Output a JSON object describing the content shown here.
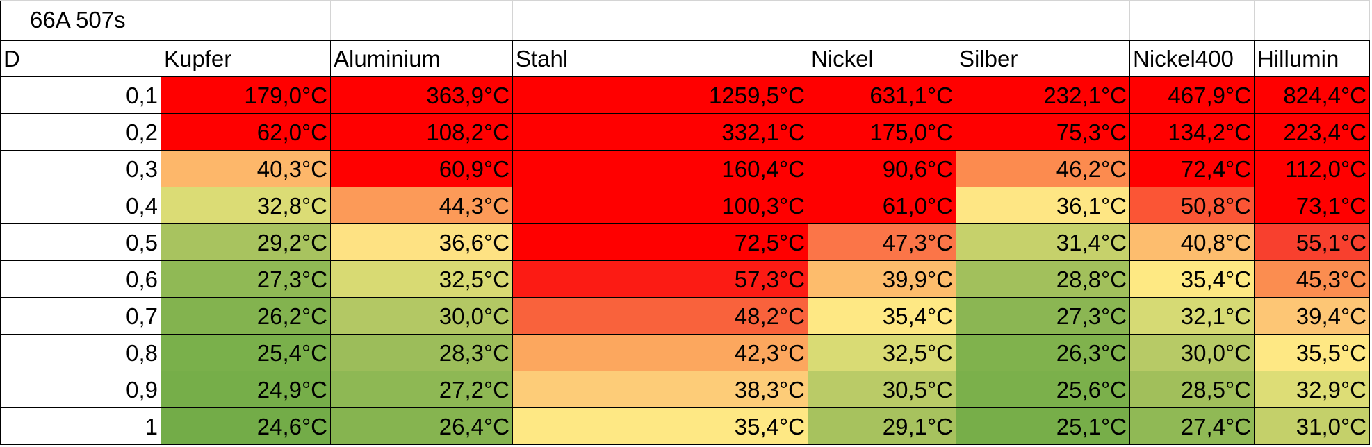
{
  "sheet": {
    "title": "66A 507s",
    "row_header": "D",
    "columns": [
      "Kupfer",
      "Aluminium",
      "Stahl",
      "Nickel",
      "Silber",
      "Nickel400",
      "Hillumin"
    ],
    "rows": [
      {
        "d": "0,1",
        "cells": [
          {
            "v": "179,0°C",
            "c": "#ff0000"
          },
          {
            "v": "363,9°C",
            "c": "#ff0000"
          },
          {
            "v": "1259,5°C",
            "c": "#ff0000"
          },
          {
            "v": "631,1°C",
            "c": "#ff0000"
          },
          {
            "v": "232,1°C",
            "c": "#ff0000"
          },
          {
            "v": "467,9°C",
            "c": "#ff0000"
          },
          {
            "v": "824,4°C",
            "c": "#ff0000"
          }
        ]
      },
      {
        "d": "0,2",
        "cells": [
          {
            "v": "62,0°C",
            "c": "#ff0000"
          },
          {
            "v": "108,2°C",
            "c": "#ff0000"
          },
          {
            "v": "332,1°C",
            "c": "#ff0000"
          },
          {
            "v": "175,0°C",
            "c": "#ff0000"
          },
          {
            "v": "75,3°C",
            "c": "#ff0000"
          },
          {
            "v": "134,2°C",
            "c": "#ff0000"
          },
          {
            "v": "223,4°C",
            "c": "#ff0000"
          }
        ]
      },
      {
        "d": "0,3",
        "cells": [
          {
            "v": "40,3°C",
            "c": "#fdb76a"
          },
          {
            "v": "60,9°C",
            "c": "#ff0000"
          },
          {
            "v": "160,4°C",
            "c": "#ff0000"
          },
          {
            "v": "90,6°C",
            "c": "#ff0000"
          },
          {
            "v": "46,2°C",
            "c": "#fc8b4f"
          },
          {
            "v": "72,4°C",
            "c": "#ff0000"
          },
          {
            "v": "112,0°C",
            "c": "#ff0000"
          }
        ]
      },
      {
        "d": "0,4",
        "cells": [
          {
            "v": "32,8°C",
            "c": "#dbdc75"
          },
          {
            "v": "44,3°C",
            "c": "#fc9a58"
          },
          {
            "v": "100,3°C",
            "c": "#ff0000"
          },
          {
            "v": "61,0°C",
            "c": "#ff0000"
          },
          {
            "v": "36,1°C",
            "c": "#fee684"
          },
          {
            "v": "50,8°C",
            "c": "#fb5535"
          },
          {
            "v": "73,1°C",
            "c": "#ff0000"
          }
        ]
      },
      {
        "d": "0,5",
        "cells": [
          {
            "v": "29,2°C",
            "c": "#a8c35f"
          },
          {
            "v": "36,6°C",
            "c": "#fee283"
          },
          {
            "v": "72,5°C",
            "c": "#ff0000"
          },
          {
            "v": "47,3°C",
            "c": "#fb7548"
          },
          {
            "v": "31,4°C",
            "c": "#c6d16b"
          },
          {
            "v": "40,8°C",
            "c": "#fdbd6e"
          },
          {
            "v": "55,1°C",
            "c": "#f8402e"
          }
        ]
      },
      {
        "d": "0,6",
        "cells": [
          {
            "v": "27,3°C",
            "c": "#90b955"
          },
          {
            "v": "32,5°C",
            "c": "#d8da73"
          },
          {
            "v": "57,3°C",
            "c": "#fc1b14"
          },
          {
            "v": "39,9°C",
            "c": "#fdbc6c"
          },
          {
            "v": "28,8°C",
            "c": "#a2c05c"
          },
          {
            "v": "35,4°C",
            "c": "#fee983"
          },
          {
            "v": "45,3°C",
            "c": "#fb8d50"
          }
        ]
      },
      {
        "d": "0,7",
        "cells": [
          {
            "v": "26,2°C",
            "c": "#83b34f"
          },
          {
            "v": "30,0°C",
            "c": "#b3c864"
          },
          {
            "v": "48,2°C",
            "c": "#f9623c"
          },
          {
            "v": "35,4°C",
            "c": "#fee884"
          },
          {
            "v": "27,3°C",
            "c": "#8bb653"
          },
          {
            "v": "32,1°C",
            "c": "#d6da74"
          },
          {
            "v": "39,4°C",
            "c": "#fdc675"
          }
        ]
      },
      {
        "d": "0,8",
        "cells": [
          {
            "v": "25,4°C",
            "c": "#7ab04b"
          },
          {
            "v": "28,3°C",
            "c": "#9cbd5a"
          },
          {
            "v": "42,3°C",
            "c": "#fca75e"
          },
          {
            "v": "32,5°C",
            "c": "#d9db74"
          },
          {
            "v": "26,3°C",
            "c": "#80b24d"
          },
          {
            "v": "30,0°C",
            "c": "#b7ca66"
          },
          {
            "v": "35,5°C",
            "c": "#fee884"
          }
        ]
      },
      {
        "d": "0,9",
        "cells": [
          {
            "v": "24,9°C",
            "c": "#76ae49"
          },
          {
            "v": "27,2°C",
            "c": "#8eb854"
          },
          {
            "v": "38,3°C",
            "c": "#fdcc78"
          },
          {
            "v": "30,5°C",
            "c": "#bacb67"
          },
          {
            "v": "25,6°C",
            "c": "#7bb04b"
          },
          {
            "v": "28,5°C",
            "c": "#a1bf5b"
          },
          {
            "v": "32,9°C",
            "c": "#dddd76"
          }
        ]
      },
      {
        "d": "1",
        "cells": [
          {
            "v": "24,6°C",
            "c": "#73ac48"
          },
          {
            "v": "26,4°C",
            "c": "#86b450"
          },
          {
            "v": "35,4°C",
            "c": "#fee884"
          },
          {
            "v": "29,1°C",
            "c": "#a7c25e"
          },
          {
            "v": "25,1°C",
            "c": "#77ae49"
          },
          {
            "v": "27,4°C",
            "c": "#90b955"
          },
          {
            "v": "31,0°C",
            "c": "#c4d06a"
          }
        ]
      }
    ]
  }
}
